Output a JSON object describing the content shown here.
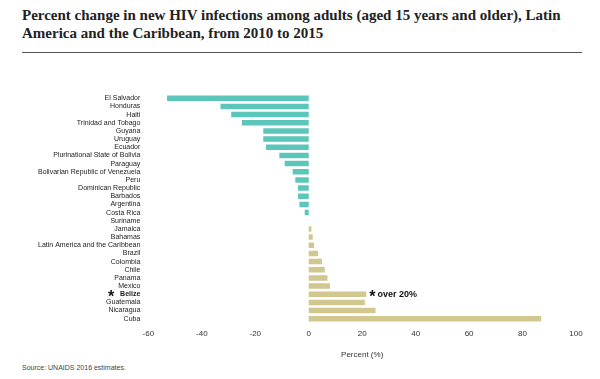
{
  "chart_data": {
    "type": "bar",
    "orientation": "horizontal",
    "title": "Percent change in new HIV infections among adults (aged 15 years and older), Latin America and the Caribbean, from 2010 to 2015",
    "x_label": "Percent (%)",
    "source": "Source: UNAIDS 2016 estimates.",
    "categories": [
      "El Salvador",
      "Honduras",
      "Haiti",
      "Trinidad and Tobago",
      "Guyana",
      "Uruguay",
      "Ecuador",
      "Plurinational State of Bolivia",
      "Paraguay",
      "Bolivarian Republic of Venezuela",
      "Peru",
      "Dominican Republic",
      "Barbados",
      "Argentina",
      "Costa Rica",
      "Suriname",
      "Jamaica",
      "Bahamas",
      "Latin America and the Caribbean",
      "Brazil",
      "Colombia",
      "Chile",
      "Panama",
      "Mexico",
      "Belize",
      "Guatemala",
      "Nicaragua",
      "Cuba"
    ],
    "values": [
      -53,
      -33,
      -29,
      -25,
      -17,
      -17,
      -16,
      -11,
      -9,
      -6,
      -5,
      -4,
      -4,
      -3.5,
      -1.5,
      0,
      1,
      1.5,
      2,
      3.5,
      5,
      6,
      7,
      8,
      21.5,
      21,
      25,
      87
    ],
    "colors": [
      "#5cc6bb",
      "#5cc6bb",
      "#5cc6bb",
      "#5cc6bb",
      "#5cc6bb",
      "#5cc6bb",
      "#5cc6bb",
      "#5cc6bb",
      "#5cc6bb",
      "#5cc6bb",
      "#5cc6bb",
      "#5cc6bb",
      "#5cc6bb",
      "#5cc6bb",
      "#5cc6bb",
      "#5cc6bb",
      "#d2c78e",
      "#d2c78e",
      "#d2c78e",
      "#d2c78e",
      "#d2c78e",
      "#d2c78e",
      "#d2c78e",
      "#d2c78e",
      "#d2c78e",
      "#d2c78e",
      "#d2c78e",
      "#d2c78e"
    ],
    "xlim": [
      -60,
      100
    ],
    "xticks": [
      -60,
      -40,
      -20,
      0,
      20,
      40,
      60,
      80,
      100
    ],
    "grid": false,
    "annotations": [
      {
        "category": "Belize",
        "symbol": "*",
        "text": "over 20%"
      }
    ]
  }
}
